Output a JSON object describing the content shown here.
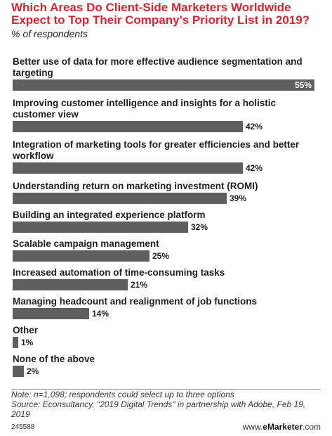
{
  "header": {
    "title": "Which Areas Do Client-Side Marketers Worldwide Expect to Top Their Company's Priority List in 2019?",
    "subtitle": "% of respondents"
  },
  "chart_data": {
    "type": "bar",
    "orientation": "horizontal",
    "categories": [
      "Better use of data for more effective audience segmentation and targeting",
      "Improving customer intelligence and insights for a holistic customer view",
      "Integration of marketing tools for greater efficiencies and better workflow",
      "Understanding return on marketing investment (ROMI)",
      "Building an integrated experience platform",
      "Scalable campaign management",
      "Increased automation of time-consuming tasks",
      "Managing headcount and realignment of job functions",
      "Other",
      "None of the above"
    ],
    "values": [
      55,
      42,
      42,
      39,
      32,
      25,
      21,
      14,
      1,
      2
    ],
    "value_labels": [
      "55%",
      "42%",
      "42%",
      "39%",
      "32%",
      "25%",
      "21%",
      "14%",
      "1%",
      "2%"
    ],
    "xlim": [
      0,
      55
    ],
    "grid": false,
    "legend": "none",
    "bar_color": "#5f5f5f",
    "title_color": "#d8242f"
  },
  "footer": {
    "note": "Note: n=1,098; respondents could select up to three options",
    "source": "Source: Econsultancy, \"2019 Digital Trends\" in partnership with Adobe, Feb 19, 2019",
    "chart_id": "245588",
    "brand_prefix": "www.",
    "brand_name": "eMarketer",
    "brand_suffix": ".com"
  }
}
